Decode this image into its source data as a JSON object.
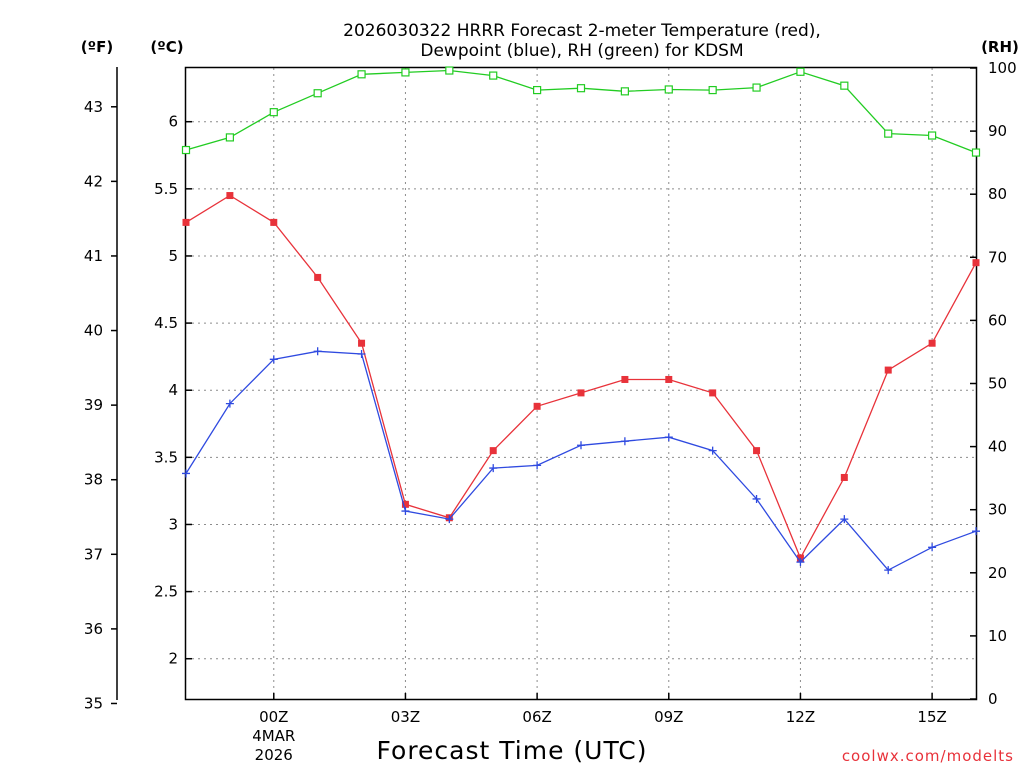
{
  "chart_data": {
    "type": "line",
    "title_line1": "2026030322 HRRR Forecast 2-meter Temperature (red),",
    "title_line2": "Dewpoint (blue), RH (green) for KDSM",
    "unit_f": "(ºF)",
    "unit_c": "(ºC)",
    "unit_rh": "(RH)",
    "xlabel": "Forecast Time (UTC)",
    "credit": "coolwx.com/modelts",
    "x_hours": [
      -2,
      -1,
      0,
      1,
      2,
      3,
      4,
      5,
      6,
      7,
      8,
      9,
      10,
      11,
      12,
      13,
      14,
      15,
      16
    ],
    "xlim": [
      -2,
      16
    ],
    "x_ticks": [
      {
        "hour": 0,
        "label": "00Z",
        "sub1": "4MAR",
        "sub2": "2026"
      },
      {
        "hour": 3,
        "label": "03Z"
      },
      {
        "hour": 6,
        "label": "06Z"
      },
      {
        "hour": 9,
        "label": "09Z"
      },
      {
        "hour": 12,
        "label": "12Z"
      },
      {
        "hour": 15,
        "label": "15Z"
      }
    ],
    "ylim_c": [
      1.7,
      6.4
    ],
    "y_ticks_c": [
      "2",
      "2.5",
      "3",
      "3.5",
      "4",
      "4.5",
      "5",
      "5.5",
      "6"
    ],
    "y_ticks_f": [
      "35",
      "36",
      "37",
      "38",
      "39",
      "40",
      "41",
      "42",
      "43"
    ],
    "ylim_rh": [
      0,
      100
    ],
    "y_ticks_rh": [
      "0",
      "10",
      "20",
      "30",
      "40",
      "50",
      "60",
      "70",
      "80",
      "90",
      "100"
    ],
    "series": [
      {
        "name": "Temperature",
        "units": "C",
        "color": "#e8323a",
        "marker": "filled-square",
        "values": [
          5.25,
          5.45,
          5.25,
          4.84,
          4.35,
          3.15,
          3.05,
          3.55,
          3.88,
          3.98,
          4.08,
          4.08,
          3.98,
          3.55,
          2.75,
          3.35,
          4.15,
          4.35,
          4.95
        ]
      },
      {
        "name": "Dewpoint",
        "units": "C",
        "color": "#2f4ae0",
        "marker": "plus",
        "values": [
          3.38,
          3.9,
          4.23,
          4.29,
          4.27,
          3.1,
          3.04,
          3.42,
          3.44,
          3.59,
          3.62,
          3.65,
          3.55,
          3.19,
          2.72,
          3.04,
          2.66,
          2.83,
          2.95
        ]
      },
      {
        "name": "RH",
        "units": "%",
        "color": "#22cc22",
        "marker": "open-square",
        "values": [
          87,
          89,
          93,
          96,
          99,
          99.3,
          99.6,
          98.8,
          96.5,
          96.8,
          96.3,
          96.6,
          96.5,
          96.9,
          99.4,
          97.2,
          89.6,
          89.3,
          86.6
        ]
      }
    ]
  }
}
